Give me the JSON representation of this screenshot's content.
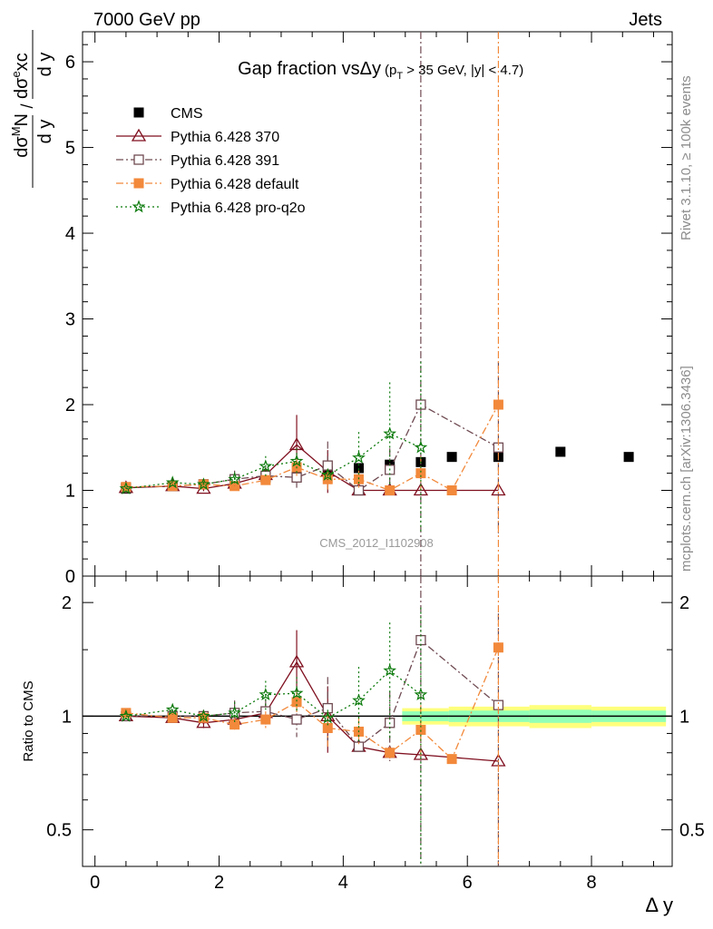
{
  "header": {
    "left": "7000 GeV pp",
    "right": "Jets",
    "side_top": "Rivet 3.1.10, ≥ 100k events",
    "side_bottom": "mcplots.cern.ch [arXiv:1306.3436]",
    "watermark": "CMS_2012_I1102908"
  },
  "chart_data": [
    {
      "type": "scatter",
      "title": "Gap fraction vsΔy",
      "title_cut": "(p",
      "title_cut_sub": "T",
      "title_cut_rest": " > 35 GeV, |y| < 4.7)",
      "ylabel": "dσ^M N/dy / dσ^e xc/dy",
      "ylabel_parts": {
        "n1": "dσ",
        "n1_sup": "M",
        "n1_rest": "N",
        "d1": "d y",
        "n2": "dσ",
        "n2_sup": "e",
        "n2_rest": "xc",
        "d2": "d y",
        "slash": "/"
      },
      "xlim": [
        -0.2,
        9.3
      ],
      "ylim": [
        0,
        6.35
      ],
      "yticks": [
        0,
        1,
        2,
        3,
        4,
        5,
        6
      ],
      "ytick_labels": [
        "0",
        "1",
        "2",
        "3",
        "4",
        "5",
        "6"
      ],
      "legend": {
        "placement": "top-left",
        "entries": [
          "CMS",
          "Pythia 6.428 370",
          "Pythia 6.428 391",
          "Pythia 6.428 default",
          "Pythia 6.428 pro-q2o"
        ]
      },
      "series": [
        {
          "name": "CMS",
          "color": "#000000",
          "marker": "filled-square",
          "line": "none",
          "x": [
            0.5,
            1.25,
            1.75,
            2.25,
            2.75,
            3.25,
            3.75,
            4.25,
            4.75,
            5.25,
            5.75,
            6.5,
            7.5,
            8.6
          ],
          "y": [
            1.02,
            1.05,
            1.07,
            1.11,
            1.15,
            1.16,
            1.22,
            1.26,
            1.3,
            1.33,
            1.39,
            1.39,
            1.45,
            1.39
          ]
        },
        {
          "name": "Pythia 6.428 370",
          "color": "#7f0f1f",
          "marker": "open-triangle",
          "line": "solid",
          "x": [
            0.5,
            1.25,
            1.75,
            2.25,
            2.75,
            3.25,
            3.75,
            4.25,
            4.75,
            5.25,
            6.5
          ],
          "y": [
            1.03,
            1.05,
            1.02,
            1.08,
            1.18,
            1.53,
            1.22,
            1.0,
            1.0,
            1.0,
            1.0
          ],
          "err": [
            0.02,
            0.02,
            0.03,
            0.04,
            0.07,
            0.35,
            0.25,
            0.03,
            0.03,
            0.0,
            0.0
          ]
        },
        {
          "name": "Pythia 6.428 391",
          "color": "#6f4a52",
          "marker": "open-square",
          "line": "dash-dot",
          "x": [
            0.5,
            1.25,
            1.75,
            2.25,
            2.75,
            3.25,
            3.75,
            4.25,
            4.75,
            5.25,
            6.5
          ],
          "y": [
            1.03,
            1.05,
            1.07,
            1.13,
            1.17,
            1.15,
            1.29,
            1.0,
            1.24,
            2.0,
            1.5
          ],
          "err": [
            0.02,
            0.03,
            0.04,
            0.1,
            0.1,
            0.12,
            0.28,
            0.03,
            0.25,
            6.0,
            1.0
          ]
        },
        {
          "name": "Pythia 6.428 default",
          "color": "#f2893b",
          "marker": "filled-square",
          "line": "dash-dot",
          "x": [
            0.5,
            1.25,
            1.75,
            2.25,
            2.75,
            3.25,
            3.75,
            4.25,
            4.75,
            5.25,
            5.75,
            6.5
          ],
          "y": [
            1.04,
            1.05,
            1.07,
            1.05,
            1.12,
            1.27,
            1.13,
            1.13,
            1.0,
            1.2,
            1.0,
            2.0
          ],
          "err": [
            0.02,
            0.02,
            0.03,
            0.04,
            0.05,
            0.1,
            0.12,
            0.1,
            0.04,
            0.2,
            0.0,
            6.0
          ]
        },
        {
          "name": "Pythia 6.428 pro-q2o",
          "color": "#0b7a0b",
          "marker": "open-star",
          "line": "dotted",
          "x": [
            0.5,
            1.25,
            1.75,
            2.25,
            2.75,
            3.25,
            3.75,
            4.25,
            4.75,
            5.25
          ],
          "y": [
            1.02,
            1.09,
            1.07,
            1.13,
            1.28,
            1.34,
            1.18,
            1.38,
            1.66,
            1.5
          ],
          "err": [
            0.02,
            0.03,
            0.03,
            0.08,
            0.12,
            0.15,
            0.06,
            0.3,
            0.6,
            1.0
          ]
        }
      ]
    },
    {
      "type": "scatter",
      "xlabel": "Δ y",
      "ylabel": "Ratio to CMS",
      "xlim": [
        -0.2,
        9.3
      ],
      "ylim": [
        0.4,
        2.35
      ],
      "xticks": [
        0,
        2,
        4,
        6,
        8
      ],
      "xtick_labels": [
        "0",
        "2",
        "4",
        "6",
        "8"
      ],
      "yticks": [
        0.5,
        1,
        2
      ],
      "ytick_labels": [
        "0.5",
        "1",
        "2"
      ],
      "reference_band": {
        "center": 1.0,
        "inner_color": "#7fffbf",
        "outer_color": "#ffff66"
      },
      "series": [
        {
          "name": "Pythia 6.428 370",
          "color": "#7f0f1f",
          "marker": "open-triangle",
          "line": "solid",
          "x": [
            0.5,
            1.25,
            1.75,
            2.25,
            2.75,
            3.25,
            3.75,
            4.25,
            4.75,
            5.25,
            6.5
          ],
          "y": [
            1.0,
            0.99,
            0.96,
            0.98,
            1.02,
            1.39,
            1.0,
            0.83,
            0.8,
            0.79,
            0.76
          ],
          "err": [
            0.02,
            0.02,
            0.03,
            0.04,
            0.06,
            0.3,
            0.2,
            0.02,
            0.02,
            0.0,
            0.0
          ]
        },
        {
          "name": "Pythia 6.428 391",
          "color": "#6f4a52",
          "marker": "open-square",
          "line": "dash-dot",
          "x": [
            0.5,
            1.25,
            1.75,
            2.25,
            2.75,
            3.25,
            3.75,
            4.25,
            4.75,
            5.25,
            6.5
          ],
          "y": [
            1.0,
            1.0,
            1.0,
            1.02,
            1.03,
            0.98,
            1.05,
            0.83,
            0.96,
            1.59,
            1.07
          ],
          "err": [
            0.02,
            0.03,
            0.04,
            0.08,
            0.08,
            0.1,
            0.22,
            0.02,
            0.2,
            5.0,
            0.8
          ]
        },
        {
          "name": "Pythia 6.428 default",
          "color": "#f2893b",
          "marker": "filled-square",
          "line": "dash-dot",
          "x": [
            0.5,
            1.25,
            1.75,
            2.25,
            2.75,
            3.25,
            3.75,
            4.25,
            4.75,
            5.25,
            5.75,
            6.5
          ],
          "y": [
            1.02,
            0.99,
            0.99,
            0.95,
            0.98,
            1.09,
            0.93,
            0.91,
            0.8,
            0.92,
            0.77,
            1.52
          ],
          "err": [
            0.02,
            0.02,
            0.03,
            0.04,
            0.05,
            0.08,
            0.1,
            0.08,
            0.03,
            0.15,
            0.0,
            5.0
          ]
        },
        {
          "name": "Pythia 6.428 pro-q2o",
          "color": "#0b7a0b",
          "marker": "open-star",
          "line": "dotted",
          "x": [
            0.5,
            1.25,
            1.75,
            2.25,
            2.75,
            3.25,
            3.75,
            4.25,
            4.75,
            5.25
          ],
          "y": [
            1.0,
            1.04,
            1.0,
            1.02,
            1.14,
            1.15,
            0.99,
            1.1,
            1.32,
            1.14
          ],
          "err": [
            0.02,
            0.03,
            0.03,
            0.07,
            0.1,
            0.12,
            0.05,
            0.25,
            0.45,
            0.8
          ]
        }
      ]
    }
  ]
}
